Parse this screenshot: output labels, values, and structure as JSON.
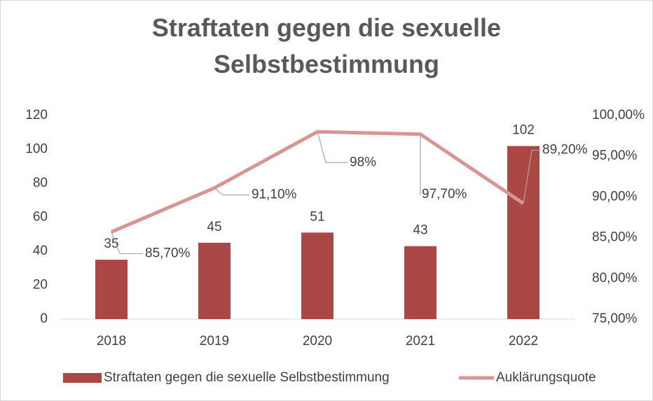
{
  "chart_data": {
    "type": "bar",
    "title": "Straftaten gegen die sexuelle Selbstbestimmung",
    "categories": [
      "2018",
      "2019",
      "2020",
      "2021",
      "2022"
    ],
    "series": [
      {
        "name": "Straftaten gegen die sexuelle Selbstbestimmung",
        "type": "bar",
        "color": "#ab4745",
        "values": [
          35,
          45,
          51,
          43,
          102
        ]
      },
      {
        "name": "Auklärungsquote",
        "type": "line",
        "axis": "y2",
        "color": "#d99594",
        "values": [
          85.7,
          91.1,
          98,
          97.7,
          89.2
        ],
        "value_labels": [
          "85,70%",
          "91,10%",
          "98%",
          "97,70%",
          "89,20%"
        ]
      }
    ],
    "ylim": [
      0,
      120
    ],
    "yticks": [
      0,
      20,
      40,
      60,
      80,
      100,
      120
    ],
    "y2lim": [
      75,
      100
    ],
    "y2ticks": [
      {
        "value": 75,
        "label": "75,00%"
      },
      {
        "value": 80,
        "label": "80,00%"
      },
      {
        "value": 85,
        "label": "85,00%"
      },
      {
        "value": 90,
        "label": "90,00%"
      },
      {
        "value": 95,
        "label": "95,00%"
      },
      {
        "value": 100,
        "label": "100,00%"
      }
    ],
    "legend": "bottom",
    "grid": false
  }
}
